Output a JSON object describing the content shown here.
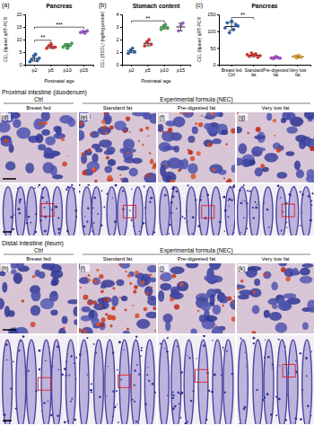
{
  "chart_data": [
    {
      "type": "scatter",
      "panel_label": "(a)",
      "title": "Pancreas",
      "x_label": "Postnatal age",
      "y_label": "CEL (lipase) qRT-PCR",
      "categories": [
        "p2",
        "p5",
        "p10",
        "p15"
      ],
      "values": [
        [
          1.2,
          2.0,
          3.5,
          4.2,
          1.6,
          2.6
        ],
        [
          6.5,
          7.5,
          8.3,
          6.8,
          7.0
        ],
        [
          7.0,
          8.0,
          6.5,
          7.6,
          8.5
        ],
        [
          12.8,
          13.2,
          12.5,
          13.5
        ]
      ],
      "means": [
        2.5,
        7.2,
        7.5,
        13.0
      ],
      "errors": [
        1.1,
        0.7,
        0.8,
        0.4
      ],
      "colors": [
        "#2a5db0",
        "#d9342b",
        "#3aa84a",
        "#9b59d0"
      ],
      "ylim": [
        0,
        20
      ],
      "yticks": [
        0,
        5,
        10,
        15,
        20
      ],
      "annotations": [
        {
          "text": "**",
          "from": "p2",
          "to": "p5"
        },
        {
          "text": "***",
          "from": "p2",
          "to": "p15"
        }
      ]
    },
    {
      "type": "scatter",
      "panel_label": "(b)",
      "title": "Stomach content",
      "x_label": "Postnatal age",
      "y_label": "CEL (BSDL) (ng/mg protein)",
      "categories": [
        "p2",
        "p5",
        "p10",
        "p15"
      ],
      "values": [
        [
          0.9,
          1.1,
          1.3,
          1.0
        ],
        [
          1.5,
          1.8,
          2.0,
          1.6
        ],
        [
          2.8,
          3.0,
          3.2,
          2.9
        ],
        [
          2.7,
          3.1,
          3.3
        ]
      ],
      "means": [
        1.1,
        1.7,
        3.0,
        3.0
      ],
      "errors": [
        0.15,
        0.2,
        0.15,
        0.3
      ],
      "colors": [
        "#2a5db0",
        "#d9342b",
        "#3aa84a",
        "#9b59d0"
      ],
      "ylim": [
        0,
        4
      ],
      "yticks": [
        0,
        1,
        2,
        3,
        4
      ],
      "annotations": [
        {
          "text": "**",
          "from": "p2",
          "to": "p10"
        }
      ]
    },
    {
      "type": "scatter",
      "panel_label": "(c)",
      "title": "Pancreas",
      "y_label": "CEL (lipase) qRT-PCR",
      "categories": [
        "Breast fed Ctrl",
        "Standard fat",
        "Pre-digested fat",
        "Very low fat"
      ],
      "values": [
        [
          110,
          125,
          95,
          130,
          105,
          120,
          115
        ],
        [
          30,
          25,
          35,
          28,
          32,
          22,
          27
        ],
        [
          20,
          18,
          24,
          22,
          19
        ],
        [
          25,
          20,
          28,
          22
        ]
      ],
      "means": [
        114,
        28,
        21,
        24
      ],
      "errors": [
        12,
        4,
        2,
        3
      ],
      "colors": [
        "#2a5db0",
        "#d9342b",
        "#b04ad0",
        "#f0a030"
      ],
      "ylim": [
        0,
        150
      ],
      "yticks": [
        0,
        50,
        100,
        150
      ],
      "annotations": [
        {
          "text": "**",
          "from": "Breast fed Ctrl",
          "to": "Standard fat"
        }
      ]
    }
  ],
  "figure": {
    "sections": [
      {
        "title": "Proximal intestine (duodenum)",
        "control": "Ctrl",
        "experimental": "Experimental formula (NEC)",
        "columns": [
          "Breast fed",
          "Standard fat",
          "Pre-digested fat",
          "Very low fat"
        ],
        "panel_labels": [
          "(d)",
          "(e)",
          "(f)",
          "(g)"
        ]
      },
      {
        "title": "Distal intestine (ileum)",
        "control": "Ctrl",
        "experimental": "Experimental formula (NEC)",
        "columns": [
          "Breast fed",
          "Standard fat",
          "Pre-digested fat",
          "Very low fat"
        ],
        "panel_labels": [
          "(h)",
          "(i)",
          "(j)",
          "(k)"
        ]
      }
    ]
  }
}
